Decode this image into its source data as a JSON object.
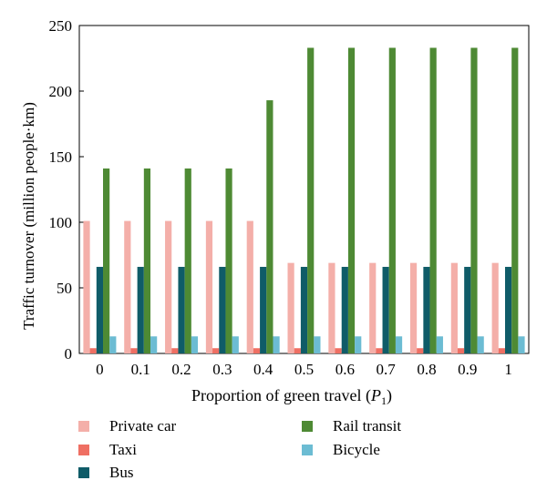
{
  "chart_data": {
    "type": "bar",
    "categories": [
      "0",
      "0.1",
      "0.2",
      "0.3",
      "0.4",
      "0.5",
      "0.6",
      "0.7",
      "0.8",
      "0.9",
      "1"
    ],
    "xlabel_main": "Proportion of green travel (",
    "xlabel_var": "P",
    "xlabel_sub": "1",
    "xlabel_end": ")",
    "ylabel": "Traffic turnover (million people·km)",
    "ylim": [
      0,
      250
    ],
    "yticks": [
      "0",
      "50",
      "100",
      "150",
      "200",
      "250"
    ],
    "ytick_values": [
      0,
      50,
      100,
      150,
      200,
      250
    ],
    "grid": false,
    "legend_placement": "bottom",
    "series": [
      {
        "name": "Private car",
        "color": "#f4afa9",
        "values": [
          101,
          101,
          101,
          101,
          101,
          69,
          69,
          69,
          69,
          69,
          69
        ]
      },
      {
        "name": "Taxi",
        "color": "#ef6f63",
        "values": [
          4,
          4,
          4,
          4,
          4,
          4,
          4,
          4,
          4,
          4,
          4
        ]
      },
      {
        "name": "Bus",
        "color": "#0f5c68",
        "values": [
          66,
          66,
          66,
          66,
          66,
          66,
          66,
          66,
          66,
          66,
          66
        ]
      },
      {
        "name": "Rail transit",
        "color": "#4e8a34",
        "values": [
          141,
          141,
          141,
          141,
          193,
          233,
          233,
          233,
          233,
          233,
          233
        ]
      },
      {
        "name": "Bicycle",
        "color": "#6cbcd3",
        "values": [
          13,
          13,
          13,
          13,
          13,
          13,
          13,
          13,
          13,
          13,
          13
        ]
      }
    ]
  }
}
